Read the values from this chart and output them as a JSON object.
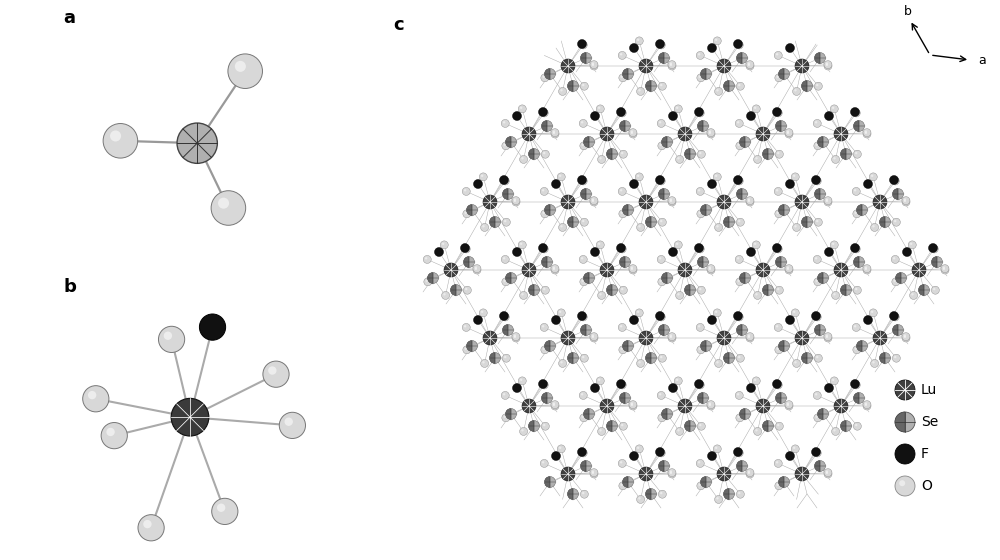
{
  "background_color": "#ffffff",
  "panel_a_label": "a",
  "panel_b_label": "b",
  "panel_c_label": "c",
  "legend_labels": [
    "Lu",
    "Se",
    "F",
    "O"
  ],
  "axis_labels": [
    "b",
    "a"
  ],
  "label_fontsize": 13,
  "legend_fontsize": 10,
  "bond_color": "#aaaaaa",
  "lu_face": "#555555",
  "se_face": "#aaaaaa",
  "f_face": "#111111",
  "o_face": "#dddddd"
}
